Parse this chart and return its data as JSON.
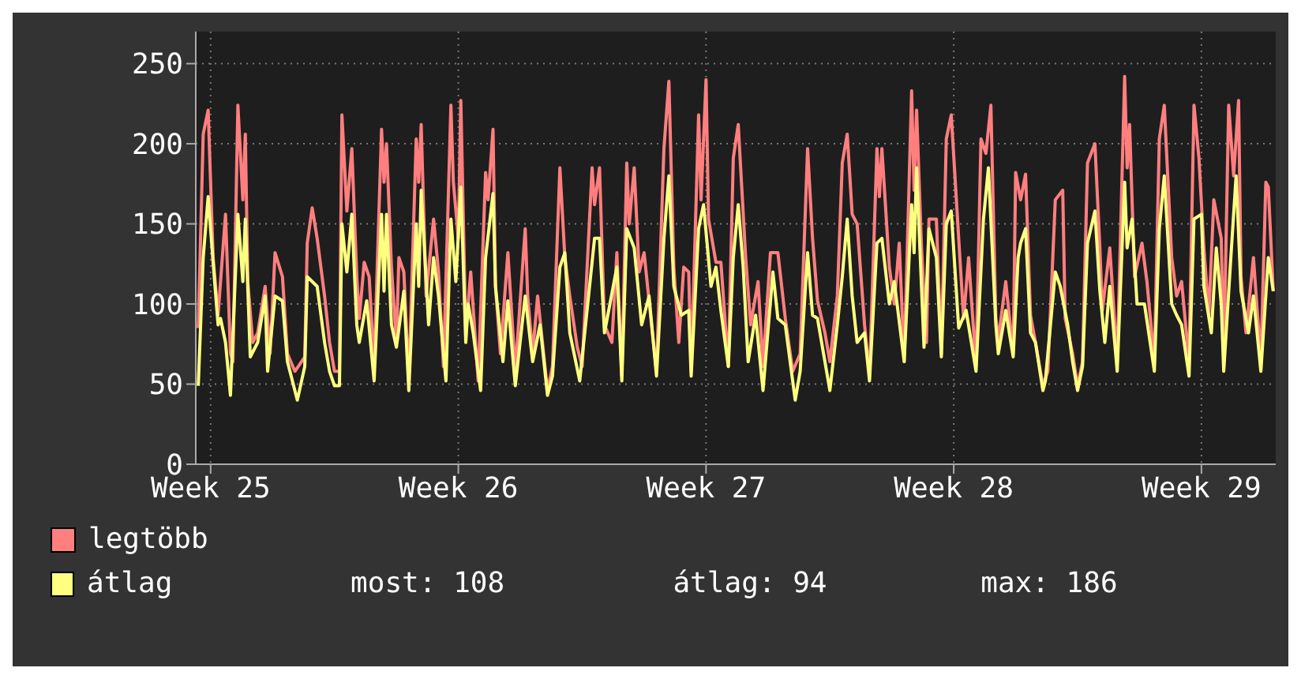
{
  "chart_data": {
    "type": "line",
    "ylim": [
      0,
      270
    ],
    "yticks": [
      0,
      50,
      100,
      150,
      200,
      250
    ],
    "grid": true,
    "legend": "bottom left",
    "marker": "none",
    "line_style": "solid",
    "categories": [
      null,
      null,
      null,
      null,
      null,
      null,
      "Week 25",
      null,
      null,
      null,
      null,
      null,
      null,
      null,
      null,
      null,
      null,
      null,
      null,
      null,
      null,
      null,
      null,
      null,
      null,
      null,
      null,
      null,
      null,
      null,
      null,
      null,
      null,
      null,
      null,
      null,
      null,
      null,
      null,
      null,
      null,
      null,
      null,
      null,
      null,
      null,
      null,
      null,
      null,
      null,
      null,
      null,
      null,
      null,
      null,
      null,
      null,
      null,
      null,
      null,
      null,
      null,
      null,
      null,
      null,
      null,
      null,
      null,
      null,
      null,
      null,
      null,
      null,
      null,
      null,
      null,
      null,
      null,
      null,
      null,
      null,
      null,
      null,
      null,
      null,
      null,
      null,
      null,
      null,
      null,
      null,
      null,
      null,
      null,
      null,
      null,
      null,
      null,
      null,
      null,
      null,
      null,
      null,
      null,
      null,
      null,
      "Week 26",
      null,
      null,
      null,
      null,
      null,
      null,
      null,
      null,
      null,
      null,
      null,
      null,
      null,
      null,
      null,
      null,
      null,
      null,
      null,
      null,
      null,
      null,
      null,
      null,
      null,
      null,
      null,
      null,
      null,
      null,
      null,
      null,
      null,
      null,
      null,
      null,
      null,
      null,
      null,
      null,
      null,
      null,
      null,
      null,
      null,
      null,
      null,
      null,
      null,
      null,
      null,
      null,
      null,
      null,
      null,
      null,
      null,
      null,
      null,
      null,
      null,
      null,
      null,
      null,
      null,
      null,
      null,
      null,
      null,
      null,
      null,
      null,
      null,
      null,
      null,
      null,
      null,
      null,
      null,
      null,
      null,
      null,
      null,
      null,
      null,
      null,
      null,
      null,
      null,
      null,
      null,
      null,
      null,
      null,
      null,
      null,
      null,
      null,
      null,
      "Week 27",
      null,
      null,
      null,
      null,
      null,
      null,
      null,
      null,
      null,
      null,
      null,
      null,
      null,
      null,
      null,
      null,
      null,
      null,
      null,
      null,
      null,
      null,
      null,
      null,
      null,
      null,
      null,
      null,
      null,
      null,
      null,
      null,
      null,
      null,
      null,
      null,
      null,
      null,
      null,
      null,
      null,
      null,
      null,
      null,
      null,
      null,
      null,
      null,
      null,
      null,
      null,
      null,
      null,
      null,
      null,
      null,
      null,
      null,
      null,
      null,
      null,
      null,
      null,
      null,
      null,
      null,
      null,
      null,
      null,
      null,
      null,
      null,
      null,
      null,
      null,
      null,
      null,
      null,
      null,
      null,
      null,
      null,
      null,
      null,
      null,
      null,
      null,
      null,
      null,
      null,
      null,
      null,
      null,
      null,
      null,
      null,
      null,
      null,
      null,
      "Week 28",
      null,
      null,
      null,
      null,
      null,
      null,
      null,
      null,
      null,
      null,
      null,
      null,
      null,
      null,
      null,
      null,
      null,
      null,
      null,
      null,
      null,
      null,
      null,
      null,
      null,
      null,
      null,
      null,
      null,
      null,
      null,
      null,
      null,
      null,
      null,
      null,
      null,
      null,
      null,
      null,
      null,
      null,
      null,
      null,
      null,
      null,
      null,
      null,
      null,
      null,
      null,
      null,
      null,
      null,
      null,
      null,
      null,
      null,
      null,
      null,
      null,
      null,
      null,
      null,
      null,
      null,
      null,
      null,
      null,
      null,
      null,
      null,
      null,
      null,
      null,
      null,
      null,
      null,
      null,
      null,
      null,
      null,
      null,
      null,
      null,
      null,
      null,
      null,
      null,
      null,
      null,
      null,
      null,
      null,
      null,
      null,
      null,
      null,
      null,
      "Week 29",
      null,
      null,
      null,
      null,
      null,
      null,
      null,
      null,
      null,
      null,
      null,
      null,
      null,
      null,
      null,
      null,
      null,
      null,
      null,
      null,
      null,
      null,
      null,
      null,
      null,
      null,
      null,
      null,
      null,
      null
    ],
    "series": [
      {
        "name": "legtöbb",
        "color": "#ff7f7f",
        "values": [
          null,
          85,
          null,
          206,
          null,
          221,
          null,
          129,
          null,
          93,
          114,
          null,
          156,
          null,
          69,
          64,
          null,
          224,
          null,
          165,
          206,
          114,
          null,
          76,
          null,
          82,
          null,
          null,
          111,
          null,
          69,
          null,
          132,
          null,
          null,
          117,
          null,
          69,
          null,
          null,
          58,
          null,
          null,
          null,
          67,
          138,
          null,
          160,
          null,
          141,
          null,
          null,
          105,
          null,
          76,
          null,
          58,
          null,
          58,
          218,
          null,
          158,
          null,
          197,
          null,
          117,
          91,
          null,
          126,
          null,
          117,
          null,
          61,
          null,
          null,
          209,
          176,
          200,
          null,
          123,
          null,
          76,
          129,
          null,
          120,
          null,
          52,
          null,
          null,
          203,
          176,
          212,
          null,
          105,
          null,
          null,
          153,
          null,
          120,
          null,
          61,
          null,
          null,
          224,
          176,
          null,
          141,
          227,
          null,
          82,
          null,
          120,
          null,
          null,
          52,
          null,
          null,
          182,
          165,
          null,
          209,
          111,
          null,
          69,
          null,
          null,
          132,
          null,
          null,
          58,
          null,
          null,
          null,
          147,
          105,
          null,
          69,
          null,
          105,
          null,
          null,
          null,
          46,
          null,
          61,
          null,
          null,
          185,
          null,
          129,
          null,
          105,
          null,
          null,
          73,
          null,
          61,
          null,
          null,
          null,
          185,
          162,
          null,
          185,
          null,
          87,
          null,
          null,
          76,
          null,
          132,
          null,
          55,
          null,
          188,
          150,
          null,
          185,
          null,
          120,
          null,
          132,
          null,
          null,
          87,
          null,
          58,
          null,
          null,
          197,
          null,
          239,
          null,
          123,
          null,
          76,
          null,
          123,
          null,
          120,
          58,
          null,
          null,
          218,
          165,
          null,
          240,
          153,
          null,
          null,
          126,
          null,
          126,
          null,
          null,
          61,
          null,
          191,
          null,
          212,
          null,
          null,
          129,
          null,
          87,
          null,
          null,
          114,
          null,
          61,
          null,
          null,
          132,
          null,
          null,
          132,
          null,
          null,
          91,
          null,
          null,
          58,
          null,
          null,
          69,
          null,
          null,
          197,
          null,
          141,
          null,
          102,
          null,
          null,
          82,
          null,
          64,
          null,
          null,
          105,
          null,
          188,
          null,
          206,
          null,
          156,
          null,
          150,
          null,
          null,
          87,
          null,
          55,
          null,
          null,
          197,
          167,
          197,
          null,
          null,
          123,
          null,
          100,
          null,
          138,
          null,
          64,
          null,
          null,
          233,
          171,
          221,
          null,
          135,
          null,
          76,
          153,
          null,
          null,
          153,
          null,
          69,
          null,
          203,
          null,
          218,
          null,
          null,
          141,
          null,
          91,
          null,
          129,
          null,
          null,
          61,
          null,
          203,
          null,
          194,
          null,
          224,
          null,
          91,
          78,
          null,
          null,
          114,
          null,
          null,
          69,
          182,
          null,
          165,
          null,
          181,
          null,
          93,
          null,
          76,
          null,
          null,
          49,
          null,
          58,
          null,
          null,
          165,
          null,
          null,
          171,
          91,
          null,
          null,
          69,
          null,
          49,
          null,
          64,
          null,
          188,
          null,
          null,
          200,
          null,
          135,
          96,
          null,
          null,
          135,
          null,
          null,
          64,
          null,
          null,
          242,
          185,
          212,
          null,
          117,
          null,
          null,
          138,
          null,
          114,
          null,
          null,
          64,
          null,
          203,
          null,
          224,
          null,
          null,
          129,
          null,
          105,
          null,
          114,
          null,
          null,
          64,
          null,
          224,
          null,
          191,
          null,
          135,
          null,
          93,
          null,
          165,
          null,
          null,
          141,
          64,
          null,
          224,
          null,
          180,
          null,
          227,
          117,
          null,
          82,
          null,
          null,
          129,
          null,
          null,
          64,
          null,
          176,
          173,
          null,
          108,
          null
        ]
      },
      {
        "name": "átlag",
        "color": "#ffff80",
        "values": [
          null,
          49,
          null,
          129,
          null,
          167,
          null,
          126,
          null,
          87,
          91,
          null,
          76,
          null,
          43,
          null,
          null,
          156,
          null,
          114,
          153,
          null,
          67,
          null,
          null,
          76,
          null,
          null,
          105,
          58,
          null,
          null,
          105,
          null,
          null,
          102,
          null,
          64,
          null,
          null,
          null,
          40,
          null,
          null,
          61,
          117,
          null,
          null,
          null,
          111,
          null,
          null,
          76,
          null,
          58,
          null,
          49,
          null,
          49,
          150,
          null,
          120,
          null,
          156,
          null,
          87,
          76,
          null,
          null,
          102,
          null,
          null,
          52,
          null,
          null,
          156,
          108,
          156,
          null,
          87,
          null,
          73,
          null,
          null,
          108,
          null,
          46,
          null,
          null,
          150,
          111,
          171,
          null,
          null,
          87,
          null,
          129,
          null,
          105,
          null,
          null,
          52,
          null,
          153,
          null,
          114,
          null,
          173,
          null,
          76,
          100,
          null,
          82,
          null,
          null,
          46,
          null,
          129,
          null,
          null,
          169,
          111,
          null,
          null,
          64,
          null,
          102,
          null,
          null,
          49,
          null,
          null,
          null,
          105,
          null,
          null,
          64,
          null,
          null,
          87,
          null,
          null,
          43,
          null,
          55,
          null,
          null,
          123,
          null,
          132,
          null,
          82,
          null,
          null,
          null,
          52,
          null,
          null,
          null,
          null,
          null,
          141,
          null,
          141,
          null,
          82,
          null,
          null,
          null,
          null,
          123,
          null,
          52,
          null,
          147,
          null,
          null,
          135,
          null,
          null,
          87,
          null,
          null,
          105,
          null,
          null,
          55,
          null,
          null,
          141,
          null,
          180,
          null,
          111,
          null,
          null,
          93,
          null,
          null,
          96,
          55,
          null,
          null,
          147,
          null,
          162,
          null,
          null,
          111,
          null,
          123,
          null,
          96,
          null,
          null,
          61,
          null,
          129,
          null,
          162,
          null,
          123,
          null,
          64,
          null,
          null,
          93,
          null,
          null,
          46,
          null,
          null,
          null,
          120,
          null,
          91,
          null,
          null,
          87,
          null,
          null,
          null,
          40,
          null,
          58,
          null,
          null,
          132,
          null,
          93,
          null,
          91,
          null,
          null,
          null,
          null,
          46,
          null,
          null,
          87,
          null,
          117,
          null,
          153,
          null,
          105,
          null,
          76,
          null,
          null,
          82,
          null,
          52,
          null,
          null,
          138,
          null,
          141,
          null,
          null,
          100,
          null,
          114,
          null,
          null,
          null,
          64,
          null,
          null,
          162,
          132,
          185,
          null,
          null,
          73,
          null,
          147,
          null,
          null,
          129,
          null,
          67,
          null,
          150,
          null,
          158,
          null,
          null,
          85,
          null,
          null,
          96,
          null,
          null,
          null,
          58,
          null,
          null,
          153,
          null,
          185,
          null,
          null,
          87,
          69,
          null,
          null,
          96,
          null,
          null,
          67,
          null,
          129,
          138,
          null,
          147,
          null,
          82,
          null,
          76,
          null,
          null,
          46,
          52,
          null,
          null,
          null,
          120,
          null,
          111,
          null,
          null,
          87,
          null,
          64,
          null,
          46,
          null,
          61,
          null,
          138,
          null,
          null,
          158,
          null,
          108,
          null,
          76,
          null,
          111,
          null,
          null,
          58,
          null,
          null,
          176,
          135,
          null,
          153,
          null,
          100,
          null,
          null,
          100,
          null,
          null,
          null,
          58,
          null,
          147,
          null,
          180,
          null,
          null,
          100,
          null,
          93,
          null,
          87,
          null,
          null,
          55,
          null,
          153,
          null,
          null,
          156,
          111,
          null,
          null,
          82,
          null,
          135,
          null,
          100,
          58,
          null,
          null,
          132,
          null,
          180,
          null,
          108,
          null,
          null,
          82,
          null,
          105,
          null,
          null,
          58,
          null,
          null,
          129,
          null,
          108,
          null
        ]
      }
    ],
    "annotations": [
      "most: 108",
      "átlag: 94",
      "max: 186"
    ]
  }
}
